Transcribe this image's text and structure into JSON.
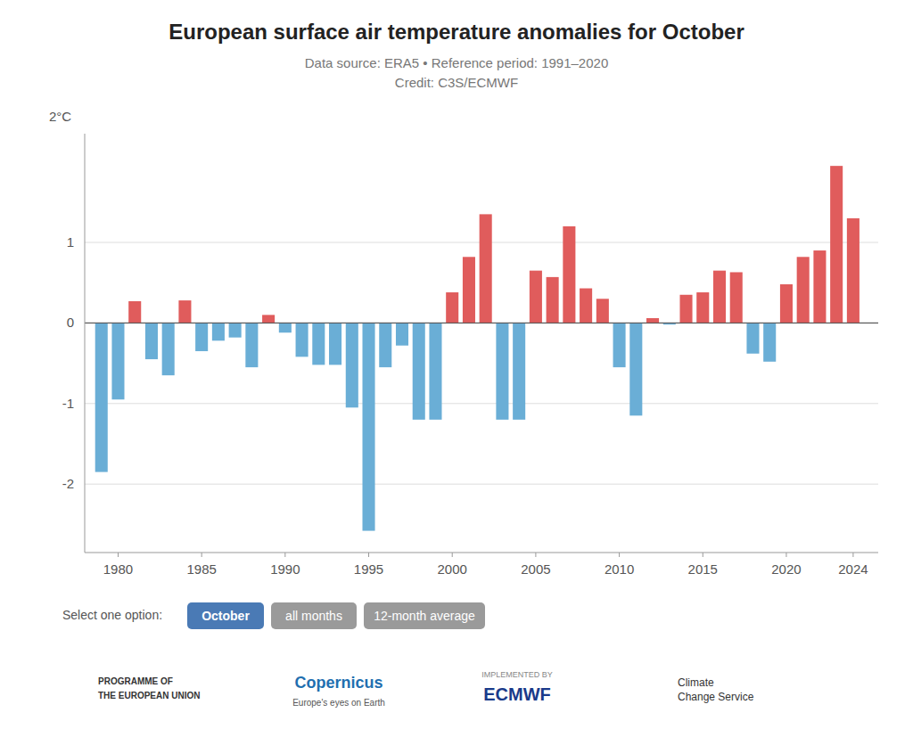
{
  "chart_data": {
    "type": "bar",
    "title": "European surface air temperature anomalies for October",
    "subtitle": [
      "Data source: ERA5 • Reference period: 1991–2020",
      "Credit: C3S/ECMWF"
    ],
    "y_label": "2°C",
    "x": [
      1979,
      1980,
      1981,
      1982,
      1983,
      1984,
      1985,
      1986,
      1987,
      1988,
      1989,
      1990,
      1991,
      1992,
      1993,
      1994,
      1995,
      1996,
      1997,
      1998,
      1999,
      2000,
      2001,
      2002,
      2003,
      2004,
      2005,
      2006,
      2007,
      2008,
      2009,
      2010,
      2011,
      2012,
      2013,
      2014,
      2015,
      2016,
      2017,
      2018,
      2019,
      2020,
      2021,
      2022,
      2023,
      2024
    ],
    "values": [
      -1.85,
      -0.95,
      0.27,
      -0.45,
      -0.65,
      0.28,
      -0.35,
      -0.22,
      -0.18,
      -0.55,
      0.1,
      -0.12,
      -0.42,
      -0.52,
      -0.52,
      -1.05,
      -2.58,
      -0.55,
      -0.28,
      -1.2,
      -1.2,
      0.38,
      0.82,
      1.35,
      -1.2,
      -1.2,
      0.65,
      0.57,
      1.2,
      0.43,
      0.3,
      -0.55,
      -1.15,
      0.06,
      -0.02,
      0.35,
      0.38,
      0.65,
      0.63,
      -0.38,
      -0.48,
      0.48,
      0.82,
      0.9,
      1.95,
      1.3
    ],
    "colors": [
      "#6aaed6",
      "#6aaed6",
      "#e05c5c",
      "#6aaed6",
      "#6aaed6",
      "#e05c5c",
      "#6aaed6",
      "#6aaed6",
      "#6aaed6",
      "#6aaed6",
      "#e05c5c",
      "#6aaed6",
      "#6aaed6",
      "#6aaed6",
      "#6aaed6",
      "#6aaed6",
      "#6aaed6",
      "#6aaed6",
      "#6aaed6",
      "#6aaed6",
      "#6aaed6",
      "#e05c5c",
      "#e05c5c",
      "#e05c5c",
      "#6aaed6",
      "#6aaed6",
      "#e05c5c",
      "#e05c5c",
      "#e05c5c",
      "#e05c5c",
      "#e05c5c",
      "#6aaed6",
      "#6aaed6",
      "#e05c5c",
      "#6aaed6",
      "#e05c5c",
      "#e05c5c",
      "#e05c5c",
      "#e05c5c",
      "#6aaed6",
      "#6aaed6",
      "#e05c5c",
      "#e05c5c",
      "#e05c5c",
      "#e05c5c",
      "#e05c5c"
    ],
    "xlim": [
      1978,
      2025.5
    ],
    "xticks": [
      1980,
      1985,
      1990,
      1995,
      2000,
      2005,
      2010,
      2015,
      2020,
      2024
    ],
    "ylim": [
      -2.85,
      2.35
    ],
    "yticks": [
      -2,
      -1,
      0,
      1
    ],
    "grid": true,
    "annotations": [
      "Select one option:",
      "October",
      "all months",
      "12-month average",
      "PROGRAMME OF",
      "THE EUROPEAN UNION",
      "Copernicus",
      "Europe's eyes on Earth",
      "IMPLEMENTED BY",
      "ECMWF",
      "Climate\nChange Service"
    ]
  }
}
